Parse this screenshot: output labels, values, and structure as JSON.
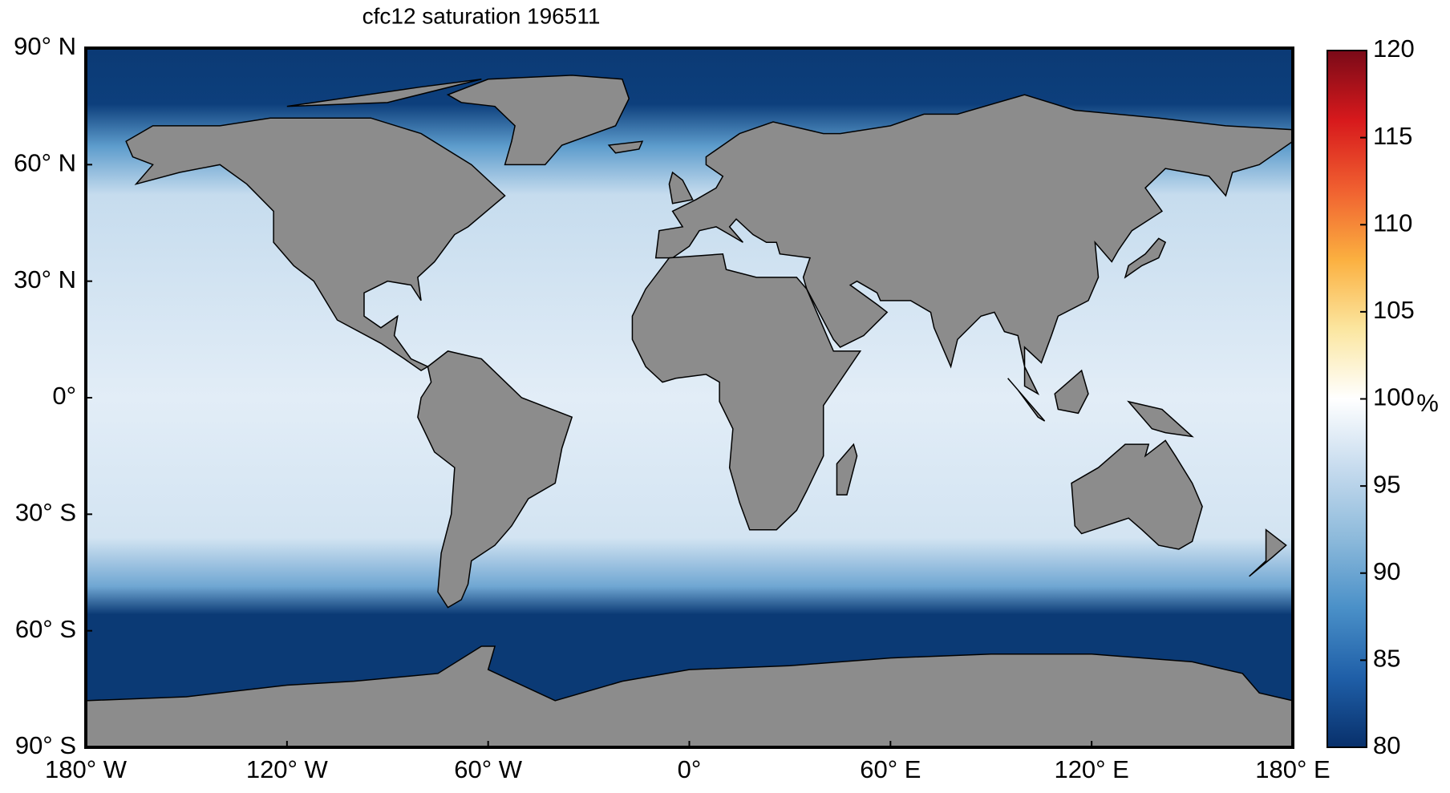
{
  "chart_data": {
    "type": "map",
    "title": "cfc12 saturation 196511",
    "xlim": [
      -180,
      180
    ],
    "xticks": [
      {
        "value": -180,
        "label": "180° W"
      },
      {
        "value": -120,
        "label": "120° W"
      },
      {
        "value": -60,
        "label": "60° W"
      },
      {
        "value": 0,
        "label": "0°"
      },
      {
        "value": 60,
        "label": "60° E"
      },
      {
        "value": 120,
        "label": "120° E"
      },
      {
        "value": 180,
        "label": "180° E"
      }
    ],
    "ylim": [
      -90,
      90
    ],
    "yticks": [
      {
        "value": -90,
        "label": "90° S"
      },
      {
        "value": -60,
        "label": "60° S"
      },
      {
        "value": -30,
        "label": "30° S"
      },
      {
        "value": 0,
        "label": "0°"
      },
      {
        "value": 30,
        "label": "30° N"
      },
      {
        "value": 60,
        "label": "60° N"
      },
      {
        "value": 90,
        "label": "90° N"
      }
    ],
    "land_color": "#8c8c8c",
    "colorbar": {
      "lim": [
        80,
        120
      ],
      "ticks": [
        80,
        85,
        90,
        95,
        100,
        105,
        110,
        115,
        120
      ],
      "label": "%",
      "colors": [
        "#08306b",
        "#1f5fa8",
        "#4a90c8",
        "#8dbadb",
        "#c6dbee",
        "#ffffff",
        "#fbe6a0",
        "#fbb040",
        "#f06030",
        "#d7191c",
        "#7a0a18"
      ]
    }
  }
}
